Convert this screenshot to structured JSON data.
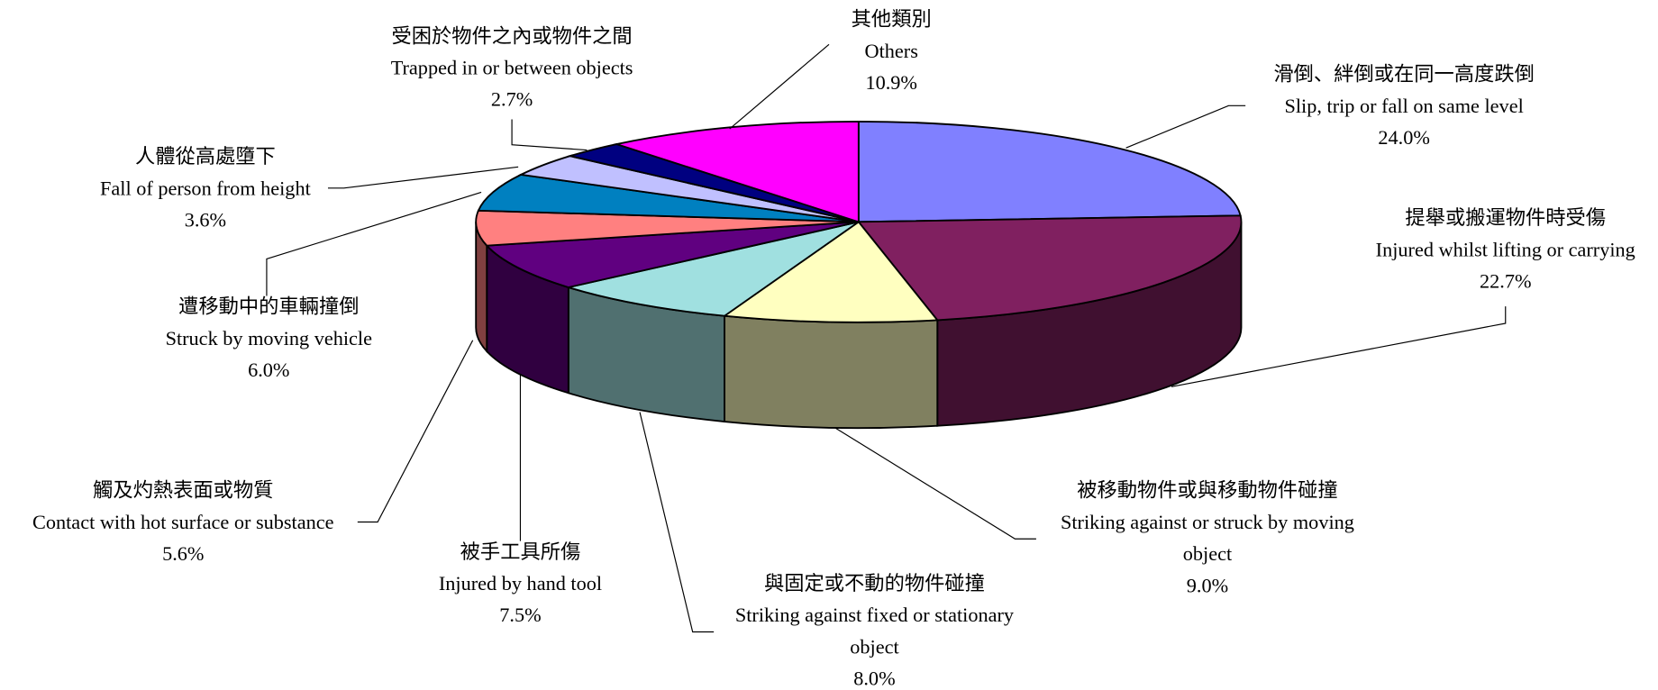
{
  "chart_data": {
    "type": "pie",
    "categories": [
      "Slip, trip or fall on same level",
      "Injured whilst lifting or carrying",
      "Striking against or struck by moving object",
      "Striking against fixed or stationary object",
      "Injured by hand tool",
      "Contact with hot surface or substance",
      "Struck by moving vehicle",
      "Fall of person from height",
      "Trapped in or between objects",
      "Others"
    ],
    "categories_zh": [
      "滑倒、絆倒或在同一高度跌倒",
      "提舉或搬運物件時受傷",
      "被移動物件或與移動物件碰撞",
      "與固定或不動的物件碰撞",
      "被手工具所傷",
      "觸及灼熱表面或物質",
      "遭移動中的車輛撞倒",
      "人體從高處墮下",
      "受困於物件之內或物件之間",
      "其他類別"
    ],
    "values": [
      24.0,
      22.7,
      9.0,
      8.0,
      7.5,
      5.6,
      6.0,
      3.6,
      2.7,
      10.9
    ],
    "value_labels": [
      "24.0%",
      "22.7%",
      "9.0%",
      "8.0%",
      "7.5%",
      "5.6%",
      "6.0%",
      "3.6%",
      "2.7%",
      "10.9%"
    ],
    "colors": [
      "#8080ff",
      "#802060",
      "#ffffc0",
      "#a0e0e0",
      "#600080",
      "#ff8080",
      "#0080c0",
      "#c0c0ff",
      "#000080",
      "#ff00ff"
    ]
  }
}
